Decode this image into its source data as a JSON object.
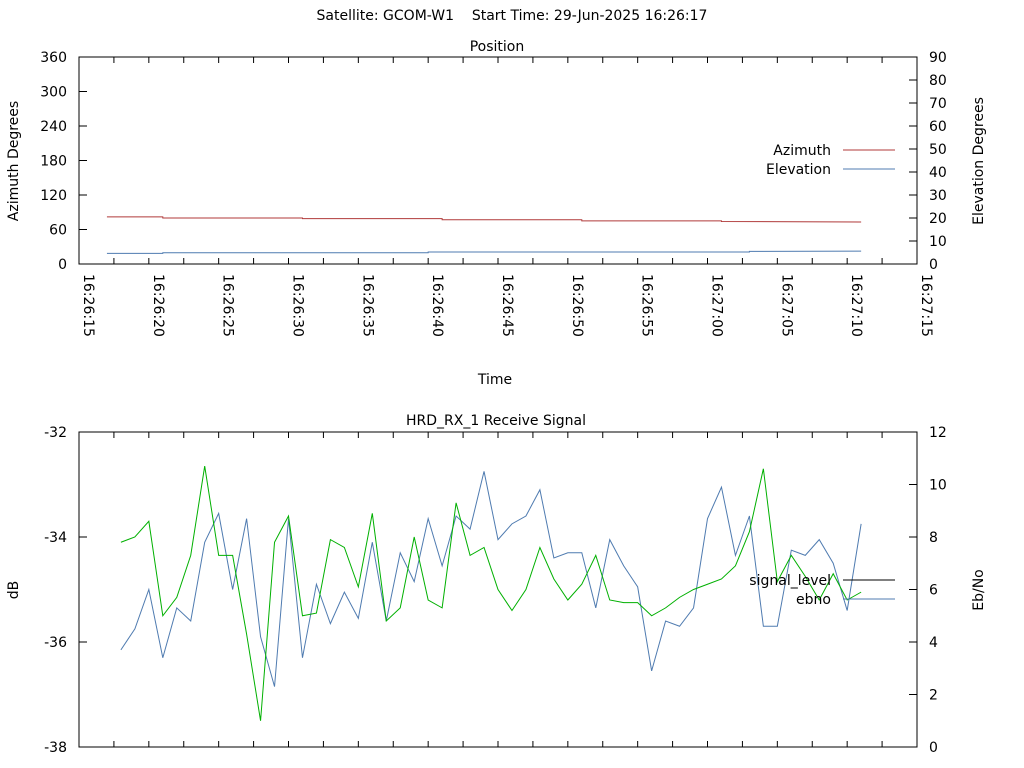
{
  "header": {
    "satellite_label": "Satellite:",
    "satellite": "GCOM-W1",
    "start_time_label": "Start Time:",
    "start_time": "29-Jun-2025 16:26:17"
  },
  "chart_data": [
    {
      "type": "line",
      "title": "Position",
      "xlabel": "Time",
      "ylabel": "Azimuth Degrees",
      "y2label": "Elevation Degrees",
      "ylim": [
        0,
        360
      ],
      "y2lim": [
        0,
        90
      ],
      "yticks": [
        0,
        60,
        120,
        180,
        240,
        300,
        360
      ],
      "y2ticks": [
        0,
        10,
        20,
        30,
        40,
        50,
        60,
        70,
        80,
        90
      ],
      "xlim_seconds_range": [
        "16:26:15",
        "16:27:15"
      ],
      "xticks": [
        "16:26:15",
        "16:26:20",
        "16:26:25",
        "16:26:30",
        "16:26:35",
        "16:26:40",
        "16:26:45",
        "16:26:50",
        "16:26:55",
        "16:27:00",
        "16:27:05",
        "16:27:10",
        "16:27:15"
      ],
      "legend_position": "right",
      "series": [
        {
          "name": "Azimuth",
          "axis": "left",
          "color": "#b03a3a",
          "points": [
            [
              "16:26:17",
              82
            ],
            [
              "16:26:21",
              82
            ],
            [
              "16:26:21",
              80
            ],
            [
              "16:26:31",
              80
            ],
            [
              "16:26:31",
              79
            ],
            [
              "16:26:41",
              79
            ],
            [
              "16:26:41",
              77
            ],
            [
              "16:26:51",
              77
            ],
            [
              "16:26:51",
              75
            ],
            [
              "16:27:01",
              75
            ],
            [
              "16:27:01",
              74
            ],
            [
              "16:27:11",
              73
            ]
          ]
        },
        {
          "name": "Elevation",
          "axis": "right",
          "color": "#4f7bb0",
          "points": [
            [
              "16:26:17",
              4.6
            ],
            [
              "16:26:21",
              4.6
            ],
            [
              "16:26:21",
              4.9
            ],
            [
              "16:26:40",
              4.9
            ],
            [
              "16:26:40",
              5.2
            ],
            [
              "16:27:03",
              5.2
            ],
            [
              "16:27:03",
              5.5
            ],
            [
              "16:27:11",
              5.6
            ]
          ]
        }
      ]
    },
    {
      "type": "line",
      "title": "HRD_RX_1 Receive Signal",
      "ylabel": "dB",
      "y2label": "Eb/No",
      "ylim": [
        -38,
        -32
      ],
      "y2lim": [
        0,
        12
      ],
      "yticks": [
        -38,
        -36,
        -34,
        -32
      ],
      "y2ticks": [
        0,
        2,
        4,
        6,
        8,
        10,
        12
      ],
      "xlim_seconds_range": [
        "16:26:15",
        "16:27:15"
      ],
      "legend_position": "right",
      "series": [
        {
          "name": "signal_level",
          "axis": "left",
          "color": "#000000",
          "points": []
        },
        {
          "name": "ebno",
          "axis": "right",
          "color": "#4f7bb0",
          "values": [
            3.7,
            4.5,
            6.0,
            3.4,
            5.3,
            4.8,
            7.8,
            8.9,
            6.0,
            8.7,
            4.2,
            2.3,
            8.7,
            3.4,
            6.2,
            4.7,
            5.9,
            4.9,
            7.8,
            4.8,
            7.4,
            6.3,
            8.7,
            6.9,
            8.8,
            8.3,
            10.5,
            7.9,
            8.5,
            8.8,
            9.8,
            7.2,
            7.4,
            7.4,
            5.3,
            7.9,
            6.9,
            6.1,
            2.9,
            4.8,
            4.6,
            5.3,
            8.7,
            9.9,
            7.3,
            8.8,
            4.6,
            4.6,
            7.5,
            7.3,
            7.9,
            7.0,
            5.2,
            8.5
          ],
          "x_start": "16:26:18",
          "x_step_seconds": 1
        },
        {
          "name": "",
          "axis": "right",
          "color": "#00b000",
          "values": [
            7.8,
            8.0,
            8.6,
            5.0,
            5.7,
            7.3,
            10.7,
            7.3,
            7.3,
            4.3,
            1.0,
            7.8,
            8.8,
            5.0,
            5.1,
            7.9,
            7.6,
            6.1,
            8.9,
            4.8,
            5.3,
            8.0,
            5.6,
            5.3,
            9.3,
            7.3,
            7.6,
            6.0,
            5.2,
            6.0,
            7.6,
            6.4,
            5.6,
            6.2,
            7.3,
            5.6,
            5.5,
            5.5,
            5.0,
            5.3,
            5.7,
            6.0,
            6.2,
            6.4,
            6.9,
            8.2,
            10.6,
            6.3,
            7.3,
            6.5,
            5.6,
            6.6,
            5.6,
            5.9
          ],
          "x_start": "16:26:18",
          "x_step_seconds": 1
        }
      ]
    }
  ]
}
